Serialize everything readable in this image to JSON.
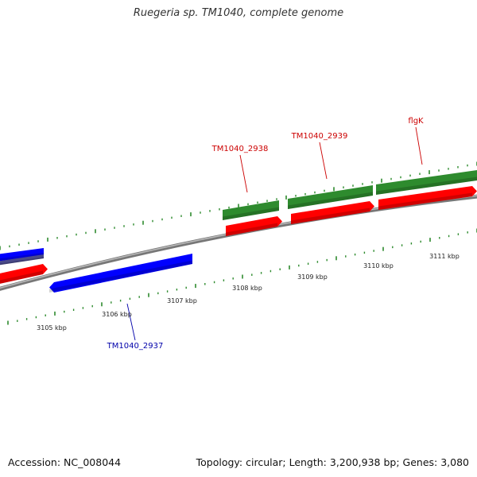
{
  "title": "Ruegeria sp. TM1040, complete genome",
  "footer": {
    "accession": "Accession: NC_008044",
    "summary": "Topology: circular; Length: 3,200,938 bp; Genes: 3,080"
  },
  "colors": {
    "forward_gene": "#ff0000",
    "forward_cds": "#2e8b2e",
    "reverse_gene": "#0000ff",
    "reverse_cds": "#4a4a8a",
    "backbone": "#888888",
    "ticks": "#2e8b2e",
    "forward_label": "#cc0000",
    "reverse_label": "#0000aa"
  },
  "axis_labels": [
    {
      "id": "3105",
      "text": "3105 kbp"
    },
    {
      "id": "3106",
      "text": "3106 kbp"
    },
    {
      "id": "3107",
      "text": "3107 kbp"
    },
    {
      "id": "3108",
      "text": "3108 kbp"
    },
    {
      "id": "3109",
      "text": "3109 kbp"
    },
    {
      "id": "3110",
      "text": "3110 kbp"
    },
    {
      "id": "3111",
      "text": "3111 kbp"
    }
  ],
  "features": [
    {
      "id": "tm1040-2937",
      "label": "TM1040_2937",
      "strand": "reverse"
    },
    {
      "id": "tm1040-2938",
      "label": "TM1040_2938",
      "strand": "forward"
    },
    {
      "id": "tm1040-2939",
      "label": "TM1040_2939",
      "strand": "forward"
    },
    {
      "id": "flgk",
      "label": "flgK",
      "strand": "forward"
    }
  ]
}
